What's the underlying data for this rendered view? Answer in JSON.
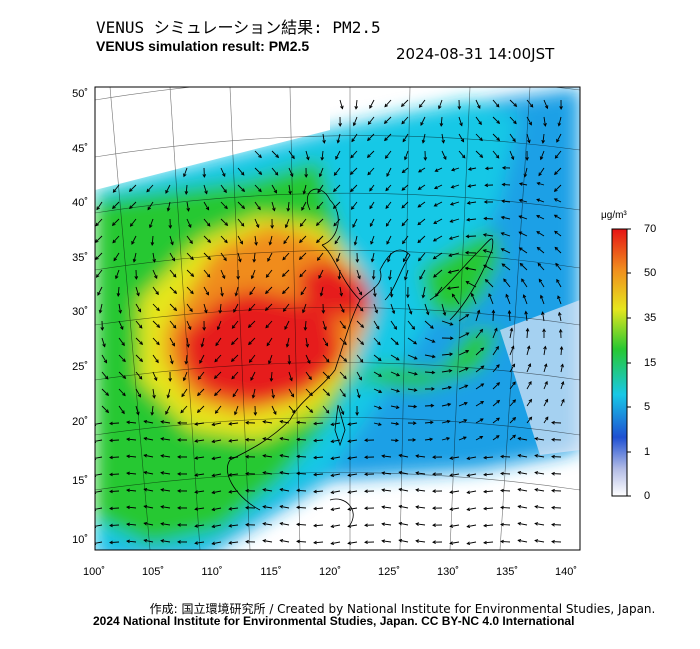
{
  "header": {
    "title_jp": "VENUS シミュレーション結果: PM2.5",
    "title_en": "VENUS simulation result: PM2.5",
    "timestamp": "2024-08-31 14:00JST"
  },
  "map": {
    "lon_ticks": [
      "100˚",
      "105˚",
      "110˚",
      "115˚",
      "120˚",
      "125˚",
      "130˚",
      "135˚",
      "140˚"
    ],
    "lat_ticks": [
      "50˚",
      "45˚",
      "40˚",
      "35˚",
      "30˚",
      "25˚",
      "20˚",
      "15˚",
      "10˚"
    ],
    "variable": "PM2.5 concentration",
    "colors": {
      "background": "#ffffff",
      "low": "#d8ddf0",
      "blue": "#1e5ad2",
      "cyan": "#18c8e6",
      "green": "#28c832",
      "yellow": "#e6e61e",
      "orange": "#f08c1e",
      "red": "#e61e1e"
    }
  },
  "colorbar": {
    "unit": "μg/m³",
    "ticks": [
      "70",
      "50",
      "35",
      "15",
      "5",
      "1",
      "0"
    ]
  },
  "footer": {
    "credit": "作成: 国立環境研究所 / Created by National Institute for Environmental Studies, Japan.",
    "copyright": "2024 National Institute for Environmental Studies, Japan. CC BY-NC 4.0 International"
  }
}
